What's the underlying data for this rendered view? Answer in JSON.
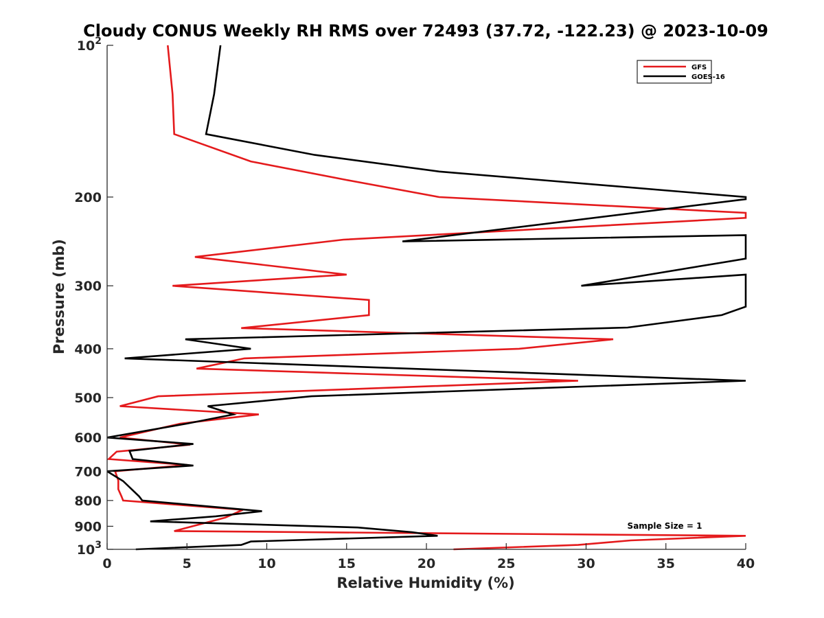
{
  "chart_data": {
    "type": "line",
    "title": "Cloudy CONUS Weekly RH RMS over 72493 (37.72, -122.23) @ 2023-10-09",
    "xlabel": "Relative Humidity (%)",
    "ylabel": "Pressure (mb)",
    "xlim": [
      0,
      40
    ],
    "ylim": [
      100,
      1000
    ],
    "yscale": "log",
    "y_reversed": true,
    "grid": false,
    "legend_position": "top-right",
    "x_ticks": [
      0,
      5,
      10,
      15,
      20,
      25,
      30,
      35,
      40
    ],
    "x_tick_labels": [
      "0",
      "5",
      "10",
      "15",
      "20",
      "25",
      "30",
      "35",
      "40"
    ],
    "y_ticks": [
      100,
      200,
      300,
      400,
      500,
      600,
      700,
      800,
      900,
      1000
    ],
    "y_tick_labels": [
      {
        "base": "10",
        "exp": "2"
      },
      {
        "text": "200"
      },
      {
        "text": "300"
      },
      {
        "text": "400"
      },
      {
        "text": "500"
      },
      {
        "text": "600"
      },
      {
        "text": "700"
      },
      {
        "text": "800"
      },
      {
        "text": "900"
      },
      {
        "base": "10",
        "exp": "3"
      }
    ],
    "annotation": "Sample Size = 1",
    "series": [
      {
        "name": "GFS",
        "color": "#e41a1c",
        "points": [
          [
            3.8,
            100
          ],
          [
            4.1,
            125
          ],
          [
            4.2,
            150
          ],
          [
            9.0,
            170
          ],
          [
            15.0,
            185
          ],
          [
            20.8,
            200
          ],
          [
            40.0,
            215
          ],
          [
            40.0,
            220
          ],
          [
            14.8,
            243
          ],
          [
            5.5,
            263
          ],
          [
            15.0,
            285
          ],
          [
            4.1,
            300
          ],
          [
            16.4,
            320
          ],
          [
            16.4,
            343
          ],
          [
            8.4,
            364
          ],
          [
            31.7,
            383
          ],
          [
            25.8,
            400
          ],
          [
            8.6,
            418
          ],
          [
            5.6,
            438
          ],
          [
            29.5,
            463
          ],
          [
            3.2,
            497
          ],
          [
            0.8,
            520
          ],
          [
            9.5,
            540
          ],
          [
            4.6,
            563
          ],
          [
            0.8,
            600
          ],
          [
            5.2,
            620
          ],
          [
            0.6,
            640
          ],
          [
            0.1,
            662
          ],
          [
            5.0,
            680
          ],
          [
            0.5,
            700
          ],
          [
            0.7,
            730
          ],
          [
            0.7,
            760
          ],
          [
            0.9,
            785
          ],
          [
            1.0,
            800
          ],
          [
            8.5,
            835
          ],
          [
            7.4,
            865
          ],
          [
            4.2,
            920
          ],
          [
            40.0,
            940
          ],
          [
            32.8,
            960
          ],
          [
            29.5,
            980
          ],
          [
            21.7,
            1000
          ]
        ]
      },
      {
        "name": "GOES-16",
        "color": "#000000",
        "points": [
          [
            7.1,
            100
          ],
          [
            6.7,
            125
          ],
          [
            6.2,
            150
          ],
          [
            13.0,
            165
          ],
          [
            20.8,
            178
          ],
          [
            40.0,
            200
          ],
          [
            40.0,
            202
          ],
          [
            18.5,
            245
          ],
          [
            40.0,
            238
          ],
          [
            40.0,
            265
          ],
          [
            29.7,
            300
          ],
          [
            40.0,
            285
          ],
          [
            40.0,
            320
          ],
          [
            40.0,
            330
          ],
          [
            38.5,
            343
          ],
          [
            32.6,
            363
          ],
          [
            4.9,
            383
          ],
          [
            9.0,
            400
          ],
          [
            1.1,
            418
          ],
          [
            40.0,
            463
          ],
          [
            12.8,
            497
          ],
          [
            6.3,
            520
          ],
          [
            7.9,
            540
          ],
          [
            5.0,
            563
          ],
          [
            0.0,
            600
          ],
          [
            5.4,
            618
          ],
          [
            1.4,
            638
          ],
          [
            1.6,
            662
          ],
          [
            5.4,
            682
          ],
          [
            0.0,
            700
          ],
          [
            1.0,
            732
          ],
          [
            1.5,
            758
          ],
          [
            2.0,
            785
          ],
          [
            2.2,
            800
          ],
          [
            9.7,
            840
          ],
          [
            6.8,
            860
          ],
          [
            2.7,
            880
          ],
          [
            15.7,
            905
          ],
          [
            19.1,
            925
          ],
          [
            20.7,
            940
          ],
          [
            9.0,
            965
          ],
          [
            8.4,
            980
          ],
          [
            1.8,
            1000
          ]
        ]
      }
    ]
  }
}
